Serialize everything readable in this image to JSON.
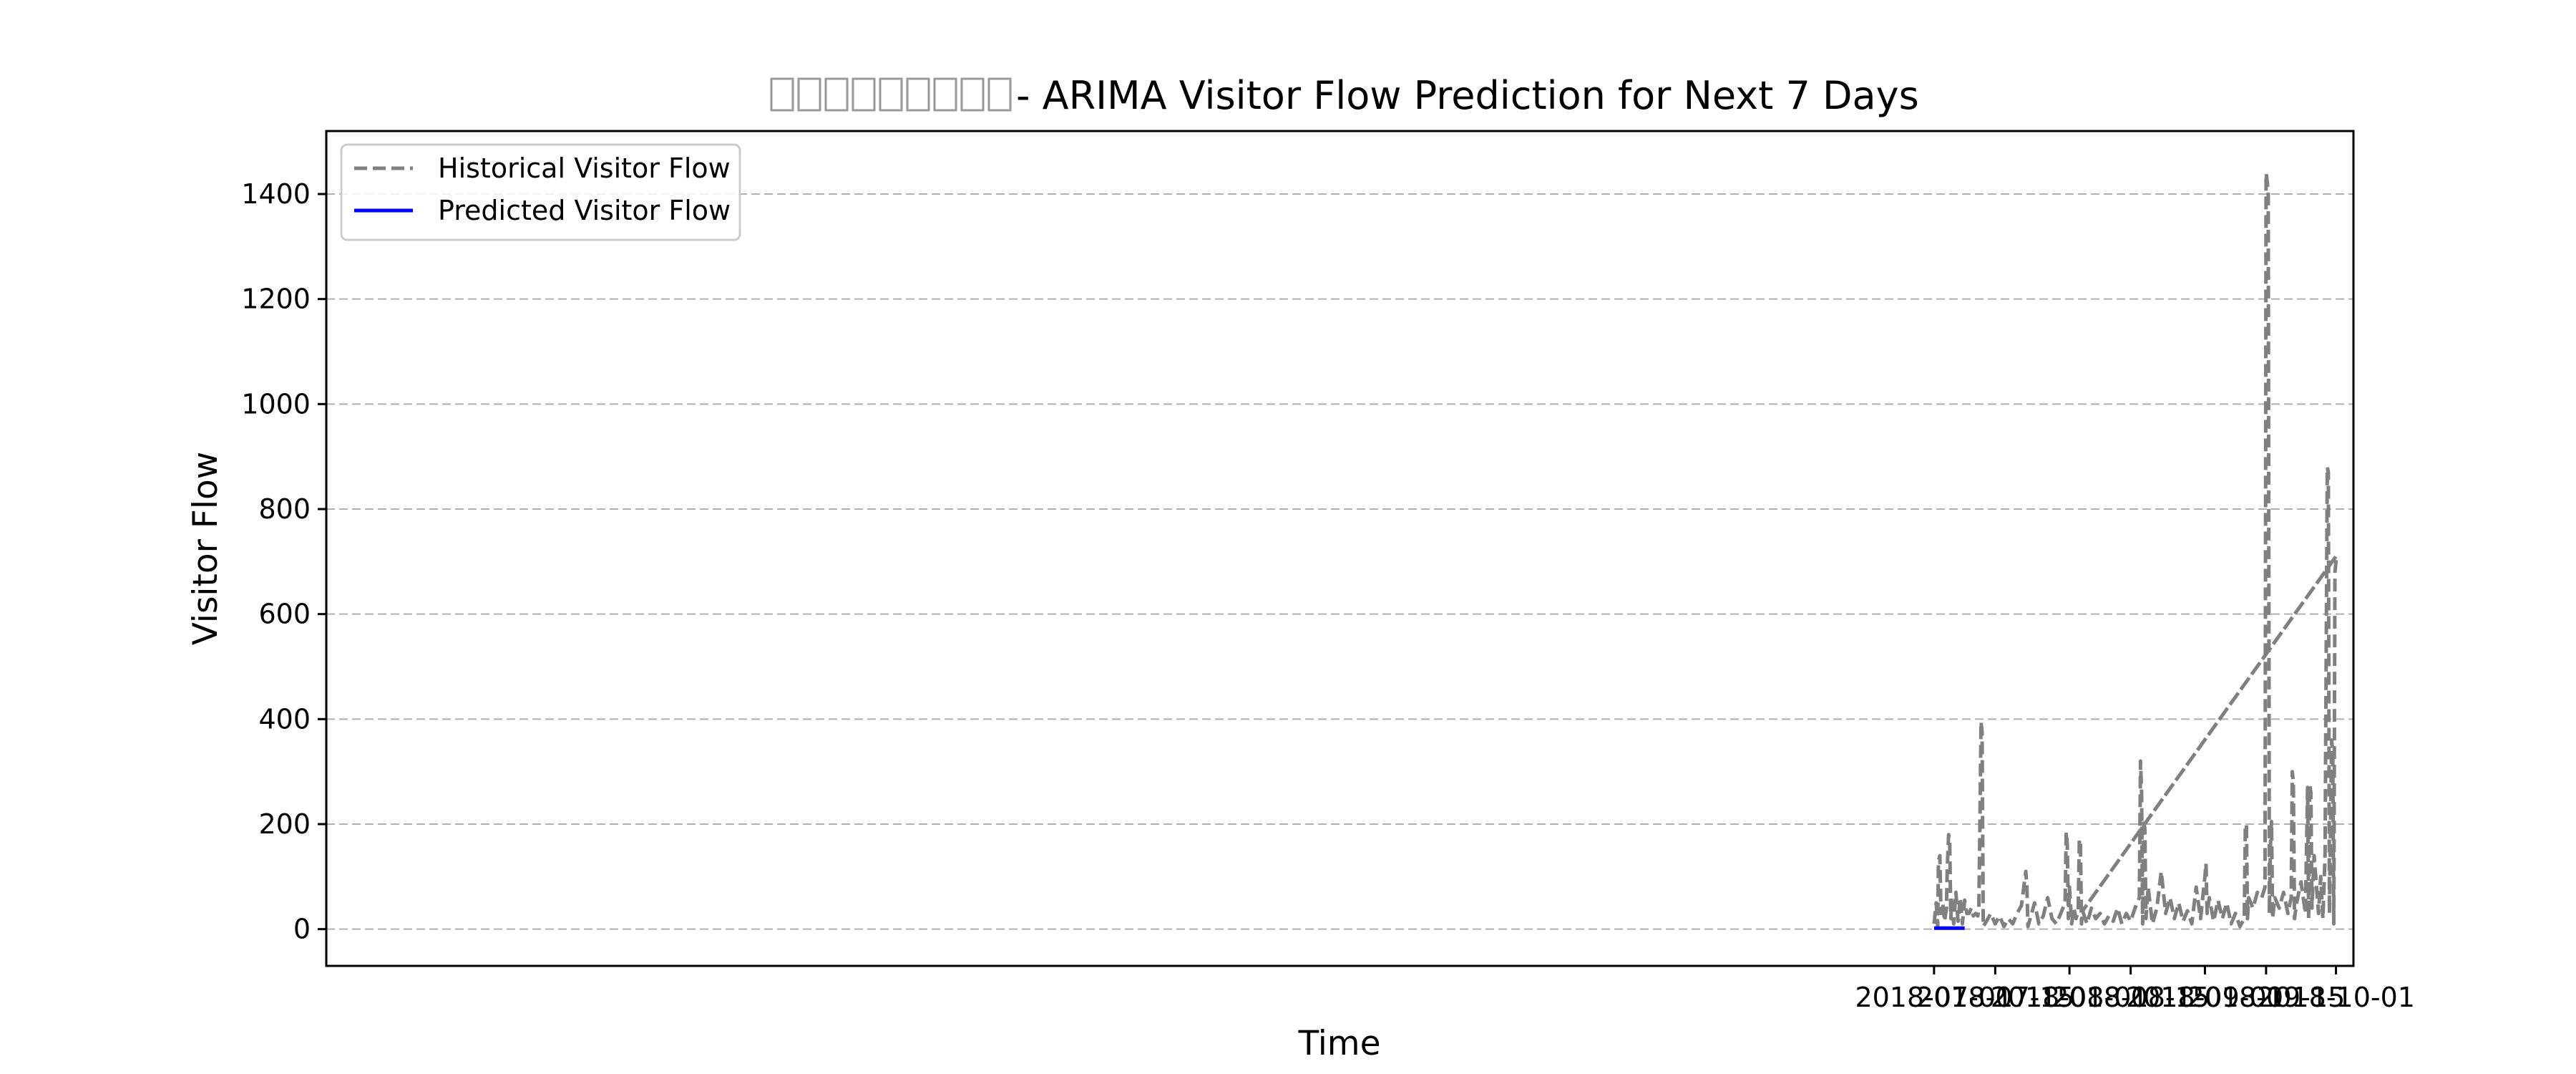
{
  "chart_data": {
    "type": "line",
    "title": "□□□□□□□□□ - ARIMA Visitor Flow Prediction for Next 7 Days",
    "title_prefix": "□□□□□□□□□",
    "title_suffix": " - ARIMA Visitor Flow Prediction for Next 7 Days",
    "xlabel": "Time",
    "ylabel": "Visitor Flow",
    "x_type": "date",
    "xlim": [
      "2017-06-28",
      "2018-10-05"
    ],
    "ylim": [
      -70,
      1520
    ],
    "x_ticks": [
      "2018-07-01",
      "2018-07-15",
      "2018-08-01",
      "2018-08-15",
      "2018-09-01",
      "2018-09-15",
      "2018-10-01"
    ],
    "y_ticks": [
      0,
      200,
      400,
      600,
      800,
      1000,
      1200,
      1400
    ],
    "grid": "horizontal dashed",
    "legend": {
      "placement": "upper-left",
      "entries": [
        "Historical Visitor Flow",
        "Predicted Visitor Flow"
      ]
    },
    "series": [
      {
        "name": "Historical Visitor Flow",
        "style": "dashed",
        "color": "#808080",
        "points": [
          [
            "2018-07-01",
            10
          ],
          [
            "2018-07-01T12:00",
            50
          ],
          [
            "2018-07-01T20:00",
            5
          ],
          [
            "2018-07-02",
            130
          ],
          [
            "2018-07-02T08:00",
            140
          ],
          [
            "2018-07-02T14:00",
            30
          ],
          [
            "2018-07-03",
            50
          ],
          [
            "2018-07-03T10:00",
            15
          ],
          [
            "2018-07-03T20:00",
            40
          ],
          [
            "2018-07-04",
            110
          ],
          [
            "2018-07-04T08:00",
            180
          ],
          [
            "2018-07-04T14:00",
            170
          ],
          [
            "2018-07-04T20:00",
            20
          ],
          [
            "2018-07-05",
            55
          ],
          [
            "2018-07-05T12:00",
            10
          ],
          [
            "2018-07-06",
            70
          ],
          [
            "2018-07-06T12:00",
            15
          ],
          [
            "2018-07-07",
            60
          ],
          [
            "2018-07-07T12:00",
            10
          ],
          [
            "2018-07-08",
            55
          ],
          [
            "2018-07-08T12:00",
            30
          ],
          [
            "2018-07-09",
            30
          ],
          [
            "2018-07-09T12:00",
            40
          ],
          [
            "2018-07-10",
            25
          ],
          [
            "2018-07-10T12:00",
            30
          ],
          [
            "2018-07-11",
            25
          ],
          [
            "2018-07-11T06:00",
            35
          ],
          [
            "2018-07-11T12:00",
            200
          ],
          [
            "2018-07-11T18:00",
            395
          ],
          [
            "2018-07-12",
            375
          ],
          [
            "2018-07-12T06:00",
            5
          ],
          [
            "2018-07-13",
            15
          ],
          [
            "2018-07-14",
            30
          ],
          [
            "2018-07-15",
            10
          ],
          [
            "2018-07-16",
            25
          ],
          [
            "2018-07-17",
            5
          ],
          [
            "2018-07-18",
            20
          ],
          [
            "2018-07-19",
            10
          ],
          [
            "2018-07-20",
            30
          ],
          [
            "2018-07-21",
            45
          ],
          [
            "2018-07-22",
            110
          ],
          [
            "2018-07-22T06:00",
            80
          ],
          [
            "2018-07-22T12:00",
            5
          ],
          [
            "2018-07-23",
            20
          ],
          [
            "2018-07-24",
            50
          ],
          [
            "2018-07-25",
            10
          ],
          [
            "2018-07-26",
            25
          ],
          [
            "2018-07-27",
            60
          ],
          [
            "2018-07-28",
            20
          ],
          [
            "2018-07-29",
            10
          ],
          [
            "2018-07-30",
            30
          ],
          [
            "2018-07-31",
            50
          ],
          [
            "2018-07-31T06:00",
            185
          ],
          [
            "2018-07-31T12:00",
            160
          ],
          [
            "2018-07-31T18:00",
            20
          ],
          [
            "2018-08-01",
            80
          ],
          [
            "2018-08-01T12:00",
            10
          ],
          [
            "2018-08-02",
            40
          ],
          [
            "2018-08-02T12:00",
            20
          ],
          [
            "2018-08-03",
            35
          ],
          [
            "2018-08-03T06:00",
            170
          ],
          [
            "2018-08-03T12:00",
            170
          ],
          [
            "2018-08-03T18:00",
            10
          ],
          [
            "2018-08-04",
            35
          ],
          [
            "2018-08-05",
            10
          ],
          [
            "2018-08-06",
            40
          ],
          [
            "2018-08-07",
            20
          ],
          [
            "2018-08-08",
            30
          ],
          [
            "2018-08-09",
            10
          ],
          [
            "2018-08-10",
            25
          ],
          [
            "2018-08-11",
            15
          ],
          [
            "2018-08-12",
            40
          ],
          [
            "2018-08-13",
            10
          ],
          [
            "2018-08-14",
            30
          ],
          [
            "2018-08-15",
            15
          ],
          [
            "2018-08-16",
            40
          ],
          [
            "2018-08-17",
            60
          ],
          [
            "2018-08-17T06:00",
            320
          ],
          [
            "2018-08-17T12:00",
            260
          ],
          [
            "2018-08-17T18:00",
            10
          ],
          [
            "2018-08-18",
            210
          ],
          [
            "2018-08-18T06:00",
            190
          ],
          [
            "2018-08-18T12:00",
            20
          ],
          [
            "2018-08-19",
            80
          ],
          [
            "2018-08-20",
            10
          ],
          [
            "2018-08-21",
            40
          ],
          [
            "2018-08-22",
            110
          ],
          [
            "2018-08-23",
            30
          ],
          [
            "2018-08-24",
            60
          ],
          [
            "2018-08-25",
            20
          ],
          [
            "2018-08-26",
            50
          ],
          [
            "2018-08-27",
            15
          ],
          [
            "2018-08-28",
            35
          ],
          [
            "2018-08-29",
            10
          ],
          [
            "2018-08-30",
            80
          ],
          [
            "2018-08-31",
            20
          ],
          [
            "2018-09-01",
            100
          ],
          [
            "2018-09-01T06:00",
            125
          ],
          [
            "2018-09-01T12:00",
            30
          ],
          [
            "2018-09-02",
            60
          ],
          [
            "2018-09-03",
            15
          ],
          [
            "2018-09-04",
            55
          ],
          [
            "2018-09-05",
            20
          ],
          [
            "2018-09-06",
            50
          ],
          [
            "2018-09-07",
            10
          ],
          [
            "2018-09-08",
            30
          ],
          [
            "2018-09-09",
            5
          ],
          [
            "2018-09-10",
            20
          ],
          [
            "2018-09-10T06:00",
            195
          ],
          [
            "2018-09-10T12:00",
            200
          ],
          [
            "2018-09-10T18:00",
            20
          ],
          [
            "2018-09-11",
            60
          ],
          [
            "2018-09-12",
            40
          ],
          [
            "2018-09-13",
            70
          ],
          [
            "2018-09-14",
            60
          ],
          [
            "2018-09-14T18:00",
            80
          ],
          [
            "2018-09-15",
            1440
          ],
          [
            "2018-09-15T06:00",
            1425
          ],
          [
            "2018-09-15T12:00",
            1400
          ],
          [
            "2018-09-15T18:00",
            30
          ],
          [
            "2018-09-16",
            160
          ],
          [
            "2018-09-16T06:00",
            205
          ],
          [
            "2018-09-16T12:00",
            20
          ],
          [
            "2018-09-17",
            60
          ],
          [
            "2018-09-18",
            40
          ],
          [
            "2018-09-19",
            70
          ],
          [
            "2018-09-20",
            30
          ],
          [
            "2018-09-20T18:00",
            60
          ],
          [
            "2018-09-21",
            300
          ],
          [
            "2018-09-21T06:00",
            280
          ],
          [
            "2018-09-21T12:00",
            20
          ],
          [
            "2018-09-22",
            50
          ],
          [
            "2018-09-23",
            90
          ],
          [
            "2018-09-24",
            30
          ],
          [
            "2018-09-24T12:00",
            270
          ],
          [
            "2018-09-24T18:00",
            20
          ],
          [
            "2018-09-25",
            275
          ],
          [
            "2018-09-25T06:00",
            260
          ],
          [
            "2018-09-25T12:00",
            40
          ],
          [
            "2018-09-26",
            140
          ],
          [
            "2018-09-27",
            30
          ],
          [
            "2018-09-27T12:00",
            100
          ],
          [
            "2018-09-28",
            20
          ],
          [
            "2018-09-28T12:00",
            140
          ],
          [
            "2018-09-29",
            880
          ],
          [
            "2018-09-29T06:00",
            870
          ],
          [
            "2018-09-29T12:00",
            30
          ],
          [
            "2018-09-29T18:00",
            180
          ],
          [
            "2018-09-30",
            360
          ],
          [
            "2018-09-30T06:00",
            340
          ],
          [
            "2018-09-30T12:00",
            10
          ],
          [
            "2018-09-30T18:00",
            680
          ],
          [
            "2018-10-01",
            700
          ],
          [
            "2018-10-01T00:00",
            710
          ],
          [
            "2018-08-04",
            35
          ],
          [
            "2018-10-01",
            710
          ]
        ]
      },
      {
        "name": "Predicted Visitor Flow",
        "style": "solid",
        "color": "#0000ff",
        "points": [
          [
            "2018-07-01",
            2
          ],
          [
            "2018-07-08",
            2
          ]
        ]
      }
    ]
  }
}
